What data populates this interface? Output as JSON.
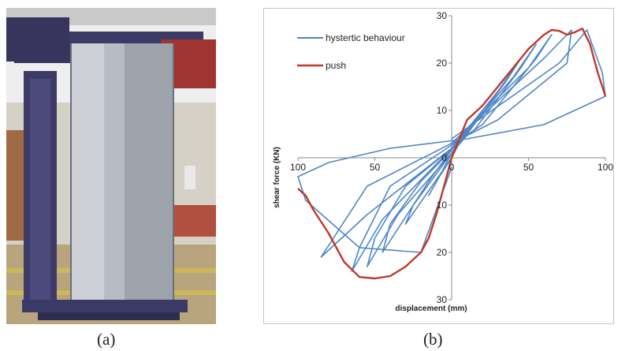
{
  "captions": {
    "a": "(a)",
    "b": "(b)"
  },
  "photo": {
    "description_icon": "test-rig-photo"
  },
  "chart_data": {
    "type": "line",
    "xlabel": "displacement (mm)",
    "ylabel": "shear force (KN)",
    "xlim": [
      -100,
      100
    ],
    "ylim": [
      -30,
      30
    ],
    "x_ticks": [
      "100",
      "50",
      "0",
      "50",
      "100"
    ],
    "y_ticks": [
      "30",
      "20",
      "10",
      "0",
      "10",
      "20",
      "30"
    ],
    "grid": false,
    "legend_position": "top-left",
    "colors": {
      "hysteretic": "#4f86c6",
      "push": "#c0392b"
    },
    "series": [
      {
        "name": "hystertic behaviour",
        "loops": [
          {
            "x": [
              0,
              8,
              15,
              8,
              0,
              -8,
              -15,
              -8,
              0
            ],
            "y": [
              0,
              5,
              8,
              4,
              1,
              -4,
              -8,
              -4,
              0
            ]
          },
          {
            "x": [
              0,
              20,
              30,
              20,
              5,
              -15,
              -25,
              -30,
              -15,
              0
            ],
            "y": [
              1,
              10,
              14,
              9,
              4,
              -5,
              -10,
              -14,
              -7,
              0
            ]
          },
          {
            "x": [
              0,
              30,
              45,
              35,
              10,
              -20,
              -40,
              -45,
              -25,
              0
            ],
            "y": [
              2,
              14,
              21,
              16,
              5,
              -5,
              -14,
              -20,
              -10,
              1
            ]
          },
          {
            "x": [
              0,
              40,
              55,
              45,
              15,
              -30,
              -50,
              -55,
              -35,
              0
            ],
            "y": [
              2,
              17,
              24,
              19,
              6,
              -6,
              -17,
              -23,
              -12,
              1
            ]
          },
          {
            "x": [
              0,
              50,
              65,
              55,
              20,
              -40,
              -60,
              -65,
              -45,
              0
            ],
            "y": [
              3,
              19,
              26,
              21,
              7,
              -6,
              -19,
              -24,
              -13,
              2
            ]
          },
          {
            "x": [
              0,
              60,
              78,
              75,
              30,
              -55,
              -75,
              -85,
              -55,
              0
            ],
            "y": [
              3,
              21,
              27,
              20,
              8,
              -6,
              -16,
              -21,
              -12,
              2
            ]
          },
          {
            "x": [
              0,
              70,
              88,
              98,
              100,
              60,
              10,
              -40,
              -80,
              -100,
              -95,
              -60,
              -20,
              0
            ],
            "y": [
              4,
              20,
              27,
              18,
              13,
              7,
              4,
              2,
              -1,
              -4,
              -9,
              -19,
              -20,
              -2
            ]
          }
        ]
      },
      {
        "name": "push",
        "x": [
          0,
          5,
          10,
          20,
          30,
          40,
          50,
          60,
          65,
          70,
          75,
          80,
          85,
          90,
          95,
          100
        ],
        "y": [
          0,
          4,
          8,
          11,
          15,
          19,
          23,
          26,
          27,
          26.8,
          26,
          26.5,
          27.3,
          24,
          18,
          13
        ],
        "x_neg": [
          0,
          -5,
          -10,
          -15,
          -20,
          -30,
          -40,
          -50,
          -60,
          -70,
          -80,
          -90,
          -95,
          -100
        ],
        "y_neg": [
          0,
          -6,
          -12,
          -17,
          -20,
          -23,
          -25,
          -25.5,
          -25.2,
          -22,
          -16,
          -11,
          -8,
          -6.5
        ]
      }
    ]
  }
}
